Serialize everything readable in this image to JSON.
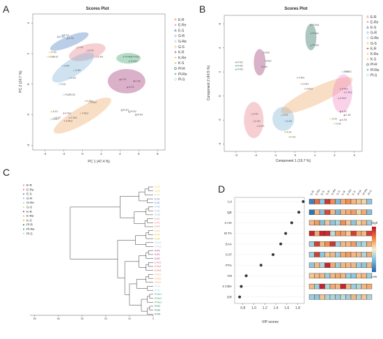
{
  "panels": {
    "a": "A",
    "b": "B",
    "c": "C",
    "d": "D"
  },
  "groups": [
    {
      "name": "E-R",
      "color": "#e8808a"
    },
    {
      "name": "E-Re",
      "color": "#e06a78"
    },
    {
      "name": "E-S",
      "color": "#4a7fc0"
    },
    {
      "name": "G-R",
      "color": "#7fb3d8"
    },
    {
      "name": "G-Re",
      "color": "#9dd0e8"
    },
    {
      "name": "G-S",
      "color": "#e8d040"
    },
    {
      "name": "K-R",
      "color": "#a03070"
    },
    {
      "name": "K-Re",
      "color": "#f0a868"
    },
    {
      "name": "K-S",
      "color": "#d8c020"
    },
    {
      "name": "Pl-R",
      "color": "#2a6a5a"
    },
    {
      "name": "Pl-Re",
      "color": "#40a070"
    },
    {
      "name": "Pl-S",
      "color": "#a8d0e8"
    }
  ],
  "chart_data": [
    {
      "type": "scatter",
      "title": "Scores Plot",
      "xlabel": "PC 1 (47.4 %)",
      "ylabel": "PC 2 (14.7 %)",
      "xlim": [
        -5.3,
        8.8
      ],
      "ylim": [
        -4.3,
        4.6
      ],
      "xticks": [
        -4,
        -2,
        0,
        2,
        4,
        6,
        8
      ],
      "yticks": [
        -4,
        -2,
        0,
        2,
        4
      ],
      "ellipses": [
        {
          "group": "E-S",
          "cx": -1.4,
          "cy": 2.8,
          "rx": 2.2,
          "ry": 0.35,
          "angle": -22,
          "color": "#4a7fc0"
        },
        {
          "group": "E-R",
          "cx": 0.5,
          "cy": 2.1,
          "rx": 2.0,
          "ry": 0.5,
          "angle": -15,
          "color": "#e8808a"
        },
        {
          "group": "G-R",
          "cx": -1.0,
          "cy": 1.1,
          "rx": 2.6,
          "ry": 0.55,
          "angle": -33,
          "color": "#7fb3d8"
        },
        {
          "group": "Pl-Re",
          "cx": 4.9,
          "cy": 1.7,
          "rx": 1.3,
          "ry": 0.35,
          "angle": 0,
          "color": "#40a070"
        },
        {
          "group": "K-R",
          "cx": 4.7,
          "cy": 0.2,
          "rx": 2.0,
          "ry": 0.8,
          "angle": 0,
          "color": "#a03070"
        },
        {
          "group": "K-Re",
          "cx": 0.0,
          "cy": -2.05,
          "rx": 3.5,
          "ry": 0.55,
          "angle": -30,
          "color": "#f0a868"
        }
      ],
      "points": [
        {
          "label": "E-S1",
          "x": -2.1,
          "y": 3.2,
          "group": "E-S"
        },
        {
          "label": "E-S2",
          "x": -1.6,
          "y": 3.0,
          "group": "E-S"
        },
        {
          "label": "E-S3",
          "x": -2.6,
          "y": 3.1,
          "group": "E-S"
        },
        {
          "label": "E-R1",
          "x": -0.6,
          "y": 2.4,
          "group": "E-R"
        },
        {
          "label": "E-R2",
          "x": 0.5,
          "y": 2.2,
          "group": "E-R"
        },
        {
          "label": "E-R3",
          "x": 1.5,
          "y": 1.8,
          "group": "E-R"
        },
        {
          "label": "G-S1",
          "x": -3.7,
          "y": 1.8,
          "group": "G-S"
        },
        {
          "label": "G-S2",
          "x": -3.3,
          "y": 1.8,
          "group": "G-S"
        },
        {
          "label": "G-S3",
          "x": -3.5,
          "y": 2.1,
          "group": "G-S"
        },
        {
          "label": "G-R1",
          "x": -2.1,
          "y": 1.2,
          "group": "G-R"
        },
        {
          "label": "G-R2",
          "x": -0.9,
          "y": 0.9,
          "group": "G-R"
        },
        {
          "label": "G-R3",
          "x": -1.4,
          "y": 0.4,
          "group": "G-R"
        },
        {
          "label": "Pl-S1",
          "x": -2.5,
          "y": 0.0,
          "group": "Pl-S"
        },
        {
          "label": "Pl-Re1",
          "x": 4.4,
          "y": 1.8,
          "group": "Pl-Re"
        },
        {
          "label": "Pl-Re2",
          "x": 5.2,
          "y": 1.8,
          "group": "Pl-Re"
        },
        {
          "label": "Pl-Re3",
          "x": 5.0,
          "y": 1.5,
          "group": "Pl-Re"
        },
        {
          "label": "K-R1",
          "x": 4.0,
          "y": 0.3,
          "group": "K-R"
        },
        {
          "label": "K-R2",
          "x": 5.5,
          "y": 0.2,
          "group": "K-R"
        },
        {
          "label": "K-R3",
          "x": 4.8,
          "y": -0.2,
          "group": "K-R"
        },
        {
          "label": "Pl-R1",
          "x": -2.0,
          "y": -0.7,
          "group": "Pl-S"
        },
        {
          "label": "Pl-R2",
          "x": -1.5,
          "y": -0.7,
          "group": "Pl-S"
        },
        {
          "label": "K-Re1",
          "x": 0.3,
          "y": -1.1,
          "group": "K-Re"
        },
        {
          "label": "K-Re2",
          "x": 0.7,
          "y": -1.2,
          "group": "K-Re"
        },
        {
          "label": "K-Re3",
          "x": -0.2,
          "y": -1.9,
          "group": "K-Re"
        },
        {
          "label": "E-Re1",
          "x": -2.0,
          "y": -1.9,
          "group": "E-Re"
        },
        {
          "label": "E-Re2",
          "x": -1.4,
          "y": -2.2,
          "group": "E-Re"
        },
        {
          "label": "E-Re3",
          "x": -1.9,
          "y": -2.4,
          "group": "E-Re"
        },
        {
          "label": "K-S1",
          "x": -3.3,
          "y": -1.8,
          "group": "K-S"
        },
        {
          "label": "K-S2",
          "x": -3.0,
          "y": -2.2,
          "group": "K-S"
        },
        {
          "label": "G-Re1",
          "x": -3.4,
          "y": -2.3,
          "group": "G-Re"
        },
        {
          "label": "Pl-R1",
          "x": 4.2,
          "y": -1.7,
          "group": "Pl-R"
        },
        {
          "label": "Pl-R2",
          "x": 5.0,
          "y": -1.8,
          "group": "Pl-R"
        },
        {
          "label": "Pl-R3",
          "x": 5.7,
          "y": -2.0,
          "group": "Pl-R"
        }
      ]
    },
    {
      "type": "scatter",
      "title": "Scores Plot",
      "xlabel": "Component 1 (19.7 %)",
      "ylabel": "Component 2 (40.5 %)",
      "xlim": [
        -3.6,
        3.4
      ],
      "ylim": [
        -4.6,
        6.7
      ],
      "xticks": [
        -3,
        -2,
        -1,
        0,
        1,
        2,
        3
      ],
      "yticks": [
        -4,
        -2,
        0,
        2,
        4,
        6
      ],
      "ellipses": [
        {
          "group": "Pl-R",
          "cx": 0.8,
          "cy": 4.9,
          "rx": 0.28,
          "ry": 1.1,
          "angle": 0,
          "color": "#2a6a5a"
        },
        {
          "group": "K-R",
          "cx": -1.8,
          "cy": 2.8,
          "rx": 0.3,
          "ry": 1.1,
          "angle": 0,
          "color": "#a03070"
        },
        {
          "group": "E-R",
          "cx": -2.1,
          "cy": -2.0,
          "rx": 0.5,
          "ry": 1.5,
          "angle": 0,
          "color": "#e8808a"
        },
        {
          "group": "G-R",
          "cx": -0.6,
          "cy": -1.9,
          "rx": 0.55,
          "ry": 1.0,
          "angle": 0,
          "color": "#7fb3d8"
        },
        {
          "group": "K-Re",
          "cx": 1.1,
          "cy": 0.05,
          "rx": 2.0,
          "ry": 0.7,
          "angle": -25,
          "color": "#f0a868"
        },
        {
          "group": "E-S",
          "cx": 2.4,
          "cy": 0.2,
          "rx": 0.5,
          "ry": 1.6,
          "angle": 5,
          "color": "#ee88c8"
        }
      ],
      "points": [
        {
          "label": "Pl-Re3",
          "x": 0.8,
          "y": 5.9,
          "group": "Pl-Re"
        },
        {
          "label": "Pl-Re1",
          "x": 0.8,
          "y": 5.2,
          "group": "Pl-Re"
        },
        {
          "label": "Pl-Re2",
          "x": 0.8,
          "y": 4.2,
          "group": "Pl-Re"
        },
        {
          "label": "G-Re3",
          "x": -1.7,
          "y": 3.6,
          "group": "G-Re"
        },
        {
          "label": "G-Re2",
          "x": -1.6,
          "y": 2.9,
          "group": "G-Re"
        },
        {
          "label": "G-Re1",
          "x": -1.8,
          "y": 2.4,
          "group": "G-Re"
        },
        {
          "label": "Pl-R1",
          "x": -3.0,
          "y": 2.8,
          "group": "Pl-Re"
        },
        {
          "label": "Pl-R2",
          "x": -3.0,
          "y": 2.5,
          "group": "Pl-Re"
        },
        {
          "label": "Pl-R3",
          "x": -3.0,
          "y": 2.2,
          "group": "Pl-Re"
        },
        {
          "label": "K-Re1",
          "x": 0.1,
          "y": 1.5,
          "group": "K-Re"
        },
        {
          "label": "K-Re2",
          "x": 0.3,
          "y": 1.0,
          "group": "K-Re"
        },
        {
          "label": "K-Re3",
          "x": 0.5,
          "y": 0.6,
          "group": "K-Re"
        },
        {
          "label": "Pl-R1",
          "x": 2.4,
          "y": 2.0,
          "group": "Pl-S"
        },
        {
          "label": "Pl-R3",
          "x": 2.5,
          "y": 2.0,
          "group": "Pl-S"
        },
        {
          "label": "E-Re1",
          "x": 2.3,
          "y": 0.6,
          "group": "E-Re"
        },
        {
          "label": "E-Re2",
          "x": 2.5,
          "y": 0.3,
          "group": "E-Re"
        },
        {
          "label": "E-Re3",
          "x": 2.2,
          "y": -0.2,
          "group": "E-Re"
        },
        {
          "label": "K-R1",
          "x": 2.3,
          "y": -1.3,
          "group": "K-R"
        },
        {
          "label": "K-R2",
          "x": 2.5,
          "y": -1.6,
          "group": "K-R"
        },
        {
          "label": "K-R3",
          "x": 2.3,
          "y": -2.0,
          "group": "K-R"
        },
        {
          "label": "G-S1",
          "x": 1.8,
          "y": -1.9,
          "group": "G-S"
        },
        {
          "label": "G-S2",
          "x": 2.0,
          "y": -2.3,
          "group": "G-S"
        },
        {
          "label": "E-R1",
          "x": -2.2,
          "y": -1.5,
          "group": "E-R"
        },
        {
          "label": "E-R2",
          "x": -2.1,
          "y": -2.1,
          "group": "E-R"
        },
        {
          "label": "E-R3",
          "x": -1.9,
          "y": -2.5,
          "group": "E-R"
        },
        {
          "label": "G-R1",
          "x": -0.7,
          "y": -1.6,
          "group": "G-R"
        },
        {
          "label": "G-R2",
          "x": -0.5,
          "y": -2.1,
          "group": "G-R"
        },
        {
          "label": "K-S1",
          "x": -0.5,
          "y": -3.0,
          "group": "K-S"
        },
        {
          "label": "K-S2",
          "x": -0.3,
          "y": -3.4,
          "group": "K-S"
        }
      ]
    },
    {
      "type": "dendrogram",
      "xticks": [
        50,
        40,
        30,
        20,
        10,
        0
      ],
      "xlim": [
        52,
        0
      ],
      "leaves": [
        {
          "label": "G-S2",
          "group": "G-S"
        },
        {
          "label": "G-S3",
          "group": "G-S"
        },
        {
          "label": "G-S1",
          "group": "G-S"
        },
        {
          "label": "E-S3",
          "group": "E-S"
        },
        {
          "label": "E-S2",
          "group": "E-S"
        },
        {
          "label": "G-R2",
          "group": "G-R"
        },
        {
          "label": "G-R1",
          "group": "G-R"
        },
        {
          "label": "G-R3",
          "group": "G-R"
        },
        {
          "label": "E-R1",
          "group": "E-R"
        },
        {
          "label": "E-R2",
          "group": "E-R"
        },
        {
          "label": "E-R3",
          "group": "E-R"
        },
        {
          "label": "K-S1",
          "group": "K-S"
        },
        {
          "label": "K-S2",
          "group": "K-S"
        },
        {
          "label": "K-S3",
          "group": "K-S"
        },
        {
          "label": "G-Re1",
          "group": "G-Re"
        },
        {
          "label": "G-Re2",
          "group": "G-Re"
        },
        {
          "label": "K-R3",
          "group": "K-R"
        },
        {
          "label": "K-R1",
          "group": "K-R"
        },
        {
          "label": "K-R2",
          "group": "K-R"
        },
        {
          "label": "E-Re1",
          "group": "E-Re"
        },
        {
          "label": "E-Re2",
          "group": "E-Re"
        },
        {
          "label": "E-Re3",
          "group": "E-Re"
        },
        {
          "label": "K-Re1",
          "group": "K-Re"
        },
        {
          "label": "K-Re2",
          "group": "K-Re"
        },
        {
          "label": "K-Re3",
          "group": "K-Re"
        },
        {
          "label": "Pl-S1",
          "group": "Pl-S"
        },
        {
          "label": "Pl-S2",
          "group": "Pl-S"
        },
        {
          "label": "Pl-Re1",
          "group": "Pl-Re"
        },
        {
          "label": "Pl-Re2",
          "group": "Pl-Re"
        },
        {
          "label": "Pl-Re3",
          "group": "Pl-Re"
        },
        {
          "label": "Pl-R1",
          "group": "Pl-R"
        },
        {
          "label": "Pl-R2",
          "group": "Pl-R"
        },
        {
          "label": "Pl-R3",
          "group": "Pl-R"
        }
      ],
      "merges": [
        [
          0,
          1,
          2.0
        ],
        [
          33,
          2,
          3.5
        ],
        [
          3,
          4,
          2.5
        ],
        [
          34,
          35,
          6.0
        ],
        [
          5,
          6,
          2.0
        ],
        [
          37,
          7,
          3.0
        ],
        [
          8,
          9,
          2.5
        ],
        [
          39,
          10,
          3.5
        ],
        [
          38,
          40,
          8.0
        ],
        [
          36,
          41,
          14.0
        ],
        [
          11,
          12,
          2.0
        ],
        [
          43,
          13,
          3.0
        ],
        [
          14,
          15,
          3.0
        ],
        [
          44,
          45,
          7.5
        ],
        [
          16,
          17,
          2.0
        ],
        [
          47,
          18,
          3.0
        ],
        [
          19,
          20,
          2.0
        ],
        [
          49,
          21,
          3.0
        ],
        [
          48,
          50,
          6.0
        ],
        [
          22,
          23,
          2.0
        ],
        [
          52,
          24,
          3.0
        ],
        [
          25,
          26,
          2.5
        ],
        [
          53,
          54,
          7.0
        ],
        [
          27,
          28,
          1.5
        ],
        [
          56,
          29,
          2.5
        ],
        [
          30,
          31,
          1.5
        ],
        [
          58,
          32,
          2.5
        ],
        [
          57,
          59,
          5.0
        ],
        [
          55,
          60,
          10.0
        ],
        [
          51,
          61,
          12.0
        ],
        [
          46,
          62,
          15.0
        ],
        [
          42,
          63,
          35.0
        ]
      ]
    },
    {
      "type": "dot",
      "xlabel": "VIP scores",
      "xlim": [
        0.65,
        1.92
      ],
      "xticks": [
        0.8,
        1.0,
        1.2,
        1.4,
        1.6,
        1.8
      ],
      "variables": [
        "LU",
        "QE",
        "4 HA",
        "M TA",
        "SAA",
        "CAT",
        "PTA",
        "VN",
        "4 CBA",
        "OR"
      ],
      "values": [
        1.9,
        1.82,
        1.69,
        1.58,
        1.49,
        1.35,
        1.13,
        0.86,
        0.77,
        0.74
      ],
      "heatmap_columns": [
        "E-R",
        "E-Re",
        "E-S",
        "G-R",
        "G-Re",
        "G-S",
        "K-R",
        "K-Re",
        "K-S",
        "Pl-R",
        "Pl-Re",
        "Pl-S"
      ],
      "heatmap_levels": [
        [
          -1.6,
          1.0,
          -0.6,
          1.6,
          0.7,
          -0.8,
          0.5,
          0.7,
          0.4,
          0.3,
          0.2,
          -0.6
        ],
        [
          -1.8,
          0.4,
          -0.7,
          1.4,
          0.4,
          -0.8,
          0.4,
          0.5,
          0.6,
          0.2,
          0.5,
          -0.7
        ],
        [
          0.4,
          0.6,
          -0.7,
          0.3,
          -0.6,
          -0.4,
          0.7,
          0.3,
          -0.6,
          0.2,
          0.4,
          -0.5
        ],
        [
          1.8,
          0.5,
          1.8,
          1.7,
          -0.3,
          0.6,
          0.6,
          0.3,
          1.5,
          0.5,
          0.4,
          1.5
        ],
        [
          -0.5,
          1.5,
          0.4,
          0.7,
          1.6,
          -0.5,
          0.4,
          0.4,
          0.6,
          -0.5,
          -0.4,
          0.5
        ],
        [
          -0.5,
          1.5,
          -0.6,
          0.3,
          0.4,
          -0.5,
          0.5,
          0.6,
          0.4,
          0.4,
          -0.4,
          0.5
        ],
        [
          -0.6,
          0.4,
          -0.4,
          1.8,
          0.5,
          -0.5,
          0.4,
          0.4,
          0.4,
          -0.5,
          -0.6,
          0.4
        ],
        [
          0.3,
          0.4,
          0.4,
          -0.5,
          0.4,
          0.5,
          0.4,
          -0.5,
          -0.6,
          0.3,
          0.4,
          -0.5
        ],
        [
          0.4,
          -0.5,
          1.8,
          -0.4,
          0.5,
          0.4,
          1.8,
          0.4,
          -0.5,
          -0.4,
          0.4,
          0.5
        ],
        [
          -0.5,
          -0.6,
          0.3,
          -0.4,
          -0.4,
          -0.5,
          -0.3,
          -0.5,
          0.4,
          -0.4,
          0.3,
          -0.4
        ]
      ],
      "colorbar": {
        "high": "High",
        "low": "Low"
      }
    }
  ]
}
